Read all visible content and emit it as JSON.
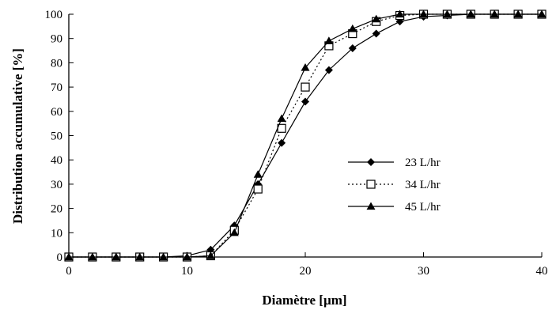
{
  "chart_data": {
    "type": "line",
    "xlabel": "Diamètre [µm]",
    "ylabel": "Distribution accumulative [%]",
    "xlim": [
      0,
      40
    ],
    "ylim": [
      0,
      100
    ],
    "xticks": [
      "0",
      "10",
      "20",
      "30",
      "40"
    ],
    "yticks": [
      "0",
      "10",
      "20",
      "30",
      "40",
      "50",
      "60",
      "70",
      "80",
      "90",
      "100"
    ],
    "grid": false,
    "legend_position": "center-right",
    "x": [
      0,
      2,
      4,
      6,
      8,
      10,
      12,
      14,
      16,
      18,
      20,
      22,
      24,
      26,
      28,
      30,
      32,
      34,
      36,
      38,
      40
    ],
    "series": [
      {
        "name": "23 L/hr",
        "marker": "diamond",
        "line_style": "solid",
        "color": "#000000",
        "values": [
          0,
          0,
          0,
          0,
          0,
          0.5,
          3,
          13,
          30,
          47,
          64,
          77,
          86,
          92,
          97,
          99,
          99.5,
          100,
          100,
          100,
          100
        ]
      },
      {
        "name": "34 L/hr",
        "marker": "open-square",
        "line_style": "dotted",
        "color": "#000000",
        "values": [
          0,
          0,
          0,
          0,
          0,
          0,
          0.5,
          11,
          28,
          53,
          70,
          87,
          92,
          97,
          99.5,
          100,
          100,
          100,
          100,
          100,
          100
        ]
      },
      {
        "name": "45 L/hr",
        "marker": "filled-triangle",
        "line_style": "solid",
        "color": "#000000",
        "values": [
          0,
          0,
          0,
          0,
          0,
          0,
          0.5,
          10,
          34,
          57,
          78,
          89,
          94,
          98,
          100,
          100,
          100,
          100,
          100,
          100,
          100
        ]
      }
    ]
  }
}
